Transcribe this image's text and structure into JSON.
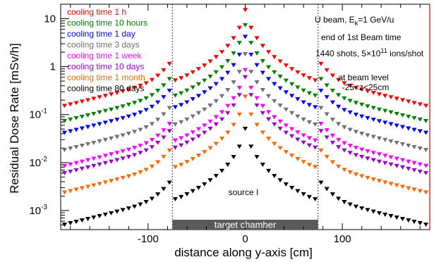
{
  "chart_data": {
    "type": "scatter",
    "title": "",
    "xlabel": "distance along y-axis [cm]",
    "ylabel": "Residual Dose Rate [mSv/h]",
    "xlim": [
      -190,
      190
    ],
    "ylim": [
      0.0004,
      20
    ],
    "yscale": "log",
    "x_ticks": [
      -100,
      0,
      100
    ],
    "x_tick_labels": [
      "-100",
      "0",
      "100"
    ],
    "y_ticks": [
      0.001,
      0.01,
      0.1,
      1,
      10
    ],
    "y_tick_labels": [
      {
        "base": "10",
        "exp": "-3"
      },
      {
        "base": "10",
        "exp": "-2"
      },
      {
        "base": "10",
        "exp": "-1"
      },
      {
        "base": "1",
        "exp": ""
      },
      {
        "base": "10",
        "exp": ""
      }
    ],
    "grid": false,
    "legend_position": "top-left",
    "marker": "triangle-down",
    "x": [
      -186,
      -180,
      -174,
      -168,
      -162,
      -156,
      -150,
      -144,
      -138,
      -132,
      -126,
      -120,
      -114,
      -108,
      -102,
      -96,
      -90,
      -84,
      -78,
      -72,
      -66,
      -60,
      -54,
      -48,
      -42,
      -36,
      -30,
      -24,
      -18,
      -12,
      -6,
      0,
      6,
      12,
      18,
      24,
      30,
      36,
      42,
      48,
      54,
      60,
      66,
      72,
      78,
      84,
      90,
      96,
      102,
      108,
      114,
      120,
      126,
      132,
      138,
      144,
      150,
      156,
      162,
      168,
      174,
      180,
      186
    ],
    "series": [
      {
        "name": "cooling time 1 h",
        "color": "#ff0000",
        "values": [
          0.153,
          0.164,
          0.175,
          0.188,
          0.201,
          0.215,
          0.231,
          0.247,
          0.265,
          0.285,
          0.308,
          0.334,
          0.364,
          0.402,
          0.453,
          0.53,
          0.654,
          0.845,
          1.15,
          0.52,
          0.577,
          0.66,
          0.764,
          0.894,
          1.06,
          1.29,
          1.59,
          2.02,
          2.72,
          3.93,
          6.48,
          15.2,
          6.48,
          3.93,
          2.72,
          2.02,
          1.59,
          1.29,
          1.06,
          0.894,
          0.764,
          0.66,
          0.577,
          0.52,
          1.15,
          0.845,
          0.654,
          0.53,
          0.453,
          0.402,
          0.364,
          0.334,
          0.308,
          0.285,
          0.265,
          0.247,
          0.231,
          0.215,
          0.201,
          0.188,
          0.175,
          0.164,
          0.153
        ]
      },
      {
        "name": "cooling time 10 hours",
        "color": "#008000",
        "values": [
          0.0739,
          0.0793,
          0.0849,
          0.0908,
          0.0972,
          0.104,
          0.112,
          0.12,
          0.128,
          0.138,
          0.149,
          0.162,
          0.176,
          0.194,
          0.219,
          0.256,
          0.316,
          0.408,
          0.555,
          0.251,
          0.279,
          0.319,
          0.369,
          0.432,
          0.514,
          0.622,
          0.766,
          0.975,
          1.31,
          1.9,
          3.13,
          7.37,
          3.13,
          1.9,
          1.31,
          0.975,
          0.766,
          0.622,
          0.514,
          0.432,
          0.369,
          0.319,
          0.279,
          0.251,
          0.555,
          0.408,
          0.316,
          0.256,
          0.219,
          0.194,
          0.176,
          0.162,
          0.149,
          0.138,
          0.128,
          0.12,
          0.112,
          0.104,
          0.0972,
          0.0908,
          0.0849,
          0.0793,
          0.0739
        ]
      },
      {
        "name": "cooling time 1 day",
        "color": "#0000ff",
        "values": [
          0.0421,
          0.0451,
          0.0483,
          0.0517,
          0.0553,
          0.0593,
          0.0636,
          0.0681,
          0.0731,
          0.0786,
          0.0848,
          0.0919,
          0.1,
          0.111,
          0.125,
          0.146,
          0.18,
          0.232,
          0.316,
          0.143,
          0.159,
          0.181,
          0.21,
          0.246,
          0.292,
          0.354,
          0.436,
          0.555,
          0.747,
          1.08,
          1.78,
          4.19,
          1.78,
          1.08,
          0.747,
          0.555,
          0.436,
          0.354,
          0.292,
          0.246,
          0.21,
          0.181,
          0.159,
          0.143,
          0.316,
          0.232,
          0.18,
          0.146,
          0.125,
          0.111,
          0.1,
          0.0919,
          0.0848,
          0.0786,
          0.0731,
          0.0681,
          0.0636,
          0.0593,
          0.0553,
          0.0517,
          0.0483,
          0.0451,
          0.0421
        ]
      },
      {
        "name": "cooling time 3 days",
        "color": "#707070",
        "values": [
          0.0184,
          0.0197,
          0.0211,
          0.0226,
          0.0242,
          0.0259,
          0.0278,
          0.0298,
          0.032,
          0.0344,
          0.0371,
          0.0402,
          0.0438,
          0.0484,
          0.0546,
          0.0638,
          0.0787,
          0.102,
          0.138,
          0.0626,
          0.0695,
          0.0793,
          0.0919,
          0.108,
          0.128,
          0.155,
          0.191,
          0.243,
          0.327,
          0.473,
          0.78,
          1.83,
          0.78,
          0.473,
          0.327,
          0.243,
          0.191,
          0.155,
          0.128,
          0.108,
          0.0919,
          0.0793,
          0.0695,
          0.0626,
          0.138,
          0.102,
          0.0787,
          0.0638,
          0.0546,
          0.0484,
          0.0438,
          0.0402,
          0.0371,
          0.0344,
          0.032,
          0.0298,
          0.0278,
          0.0259,
          0.0242,
          0.0226,
          0.0211,
          0.0197,
          0.0184
        ]
      },
      {
        "name": "cooling time 1 week",
        "color": "#ff00ff",
        "values": [
          0.00857,
          0.00918,
          0.00983,
          0.0105,
          0.0113,
          0.0121,
          0.0129,
          0.0139,
          0.0149,
          0.016,
          0.0173,
          0.0187,
          0.0204,
          0.0225,
          0.0254,
          0.0297,
          0.0366,
          0.0473,
          0.0643,
          0.0291,
          0.0323,
          0.0369,
          0.0428,
          0.05,
          0.0595,
          0.072,
          0.0887,
          0.113,
          0.152,
          0.22,
          0.363,
          0.853,
          0.363,
          0.22,
          0.152,
          0.113,
          0.0887,
          0.072,
          0.0595,
          0.05,
          0.0428,
          0.0369,
          0.0323,
          0.0291,
          0.0643,
          0.0473,
          0.0366,
          0.0297,
          0.0254,
          0.0225,
          0.0204,
          0.0187,
          0.0173,
          0.016,
          0.0149,
          0.0139,
          0.0129,
          0.0121,
          0.0113,
          0.0105,
          0.00983,
          0.00918,
          0.00857
        ]
      },
      {
        "name": "cooling time 10 days",
        "color": "#9900cc",
        "values": [
          0.00607,
          0.0065,
          0.00696,
          0.00745,
          0.00797,
          0.00854,
          0.00916,
          0.00981,
          0.0105,
          0.0113,
          0.0122,
          0.0132,
          0.0144,
          0.016,
          0.018,
          0.021,
          0.026,
          0.0335,
          0.0455,
          0.0206,
          0.0229,
          0.0262,
          0.0303,
          0.0355,
          0.0421,
          0.051,
          0.0628,
          0.08,
          0.108,
          0.156,
          0.257,
          0.604,
          0.257,
          0.156,
          0.108,
          0.08,
          0.0628,
          0.051,
          0.0421,
          0.0355,
          0.0303,
          0.0262,
          0.0229,
          0.0206,
          0.0455,
          0.0335,
          0.026,
          0.021,
          0.018,
          0.016,
          0.0144,
          0.0132,
          0.0122,
          0.0113,
          0.0105,
          0.00981,
          0.00916,
          0.00854,
          0.00797,
          0.00745,
          0.00696,
          0.0065,
          0.00607
        ]
      },
      {
        "name": "cooling time 1 month",
        "color": "#ff6600",
        "values": [
          0.00239,
          0.00256,
          0.00274,
          0.00293,
          0.00314,
          0.00336,
          0.0036,
          0.00386,
          0.00414,
          0.00446,
          0.00481,
          0.00521,
          0.00568,
          0.00627,
          0.00707,
          0.00827,
          0.0102,
          0.0132,
          0.0179,
          0.00811,
          0.009,
          0.0103,
          0.0119,
          0.014,
          0.0166,
          0.0201,
          0.0247,
          0.0315,
          0.0424,
          0.0613,
          0.101,
          0.238,
          0.101,
          0.0613,
          0.0424,
          0.0315,
          0.0247,
          0.0201,
          0.0166,
          0.014,
          0.0119,
          0.0103,
          0.009,
          0.00811,
          0.0179,
          0.0132,
          0.0102,
          0.00827,
          0.00707,
          0.00627,
          0.00568,
          0.00521,
          0.00481,
          0.00446,
          0.00414,
          0.00386,
          0.0036,
          0.00336,
          0.00314,
          0.00293,
          0.00274,
          0.00256,
          0.00239
        ]
      },
      {
        "name": "cooling time 80 days",
        "color": "#000000",
        "values": [
          0.00051,
          0.000547,
          0.000585,
          0.000627,
          0.000671,
          0.000718,
          0.00077,
          0.000825,
          0.000885,
          0.000952,
          0.00103,
          0.00111,
          0.00121,
          0.00134,
          0.00151,
          0.00177,
          0.00218,
          0.00282,
          0.00383,
          0.00173,
          0.00192,
          0.0022,
          0.00255,
          0.00298,
          0.00354,
          0.00429,
          0.00528,
          0.00673,
          0.00906,
          0.0131,
          0.0216,
          0.0508,
          0.0216,
          0.0131,
          0.00906,
          0.00673,
          0.00528,
          0.00429,
          0.00354,
          0.00298,
          0.00255,
          0.0022,
          0.00192,
          0.00173,
          0.00383,
          0.00282,
          0.00218,
          0.00177,
          0.00151,
          0.00134,
          0.00121,
          0.00111,
          0.00103,
          0.000952,
          0.000885,
          0.000825,
          0.00077,
          0.000718,
          0.000671,
          0.000627,
          0.000585,
          0.000547,
          0.00051
        ]
      }
    ],
    "boundaries": [
      -75,
      75
    ],
    "region_label": {
      "text": "target chamber",
      "x_from": -75,
      "x_to": 75
    },
    "annotations": [
      {
        "id": "beam",
        "pre": "U beam, E",
        "sub": "k",
        "post": "=1 GeV/u"
      },
      {
        "id": "time",
        "text": "end of 1st Beam time"
      },
      {
        "id": "shots",
        "pre": "1440 shots, 5×10",
        "sup": "11",
        "post": " ions/shot"
      },
      {
        "id": "level1",
        "text": "at beam level"
      },
      {
        "id": "level2",
        "text": "-25<z<25cm"
      },
      {
        "id": "source",
        "text": "source I"
      }
    ]
  }
}
